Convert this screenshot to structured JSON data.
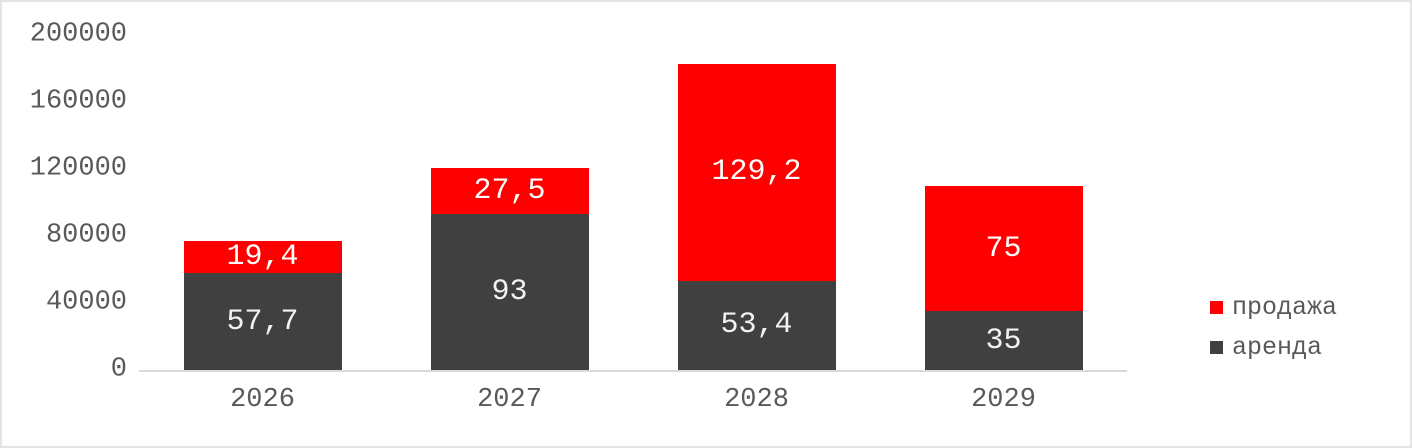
{
  "colors": {
    "series_red": "#ff0000",
    "series_dark": "#404040",
    "axis_text": "#595959",
    "axis_line": "#d9d9d9",
    "bar_label_on_red": "#ffffff",
    "bar_label_on_dark": "#f2f2f2",
    "canvas_border": "#e4e4e4",
    "background": "#ffffff"
  },
  "chart_data": {
    "type": "bar",
    "stacked": true,
    "grid": false,
    "background": "white",
    "categories": [
      "2026",
      "2027",
      "2028",
      "2029"
    ],
    "series": [
      {
        "name": "аренда",
        "color": "#404040",
        "values": [
          57700,
          93000,
          53400,
          35000
        ],
        "data_labels": [
          "57,7",
          "93",
          "53,4",
          "35"
        ]
      },
      {
        "name": "продажа",
        "color": "#ff0000",
        "values": [
          19400,
          27500,
          129200,
          75000
        ],
        "data_labels": [
          "19,4",
          "27,5",
          "129,2",
          "75"
        ]
      }
    ],
    "xlabel": "",
    "ylabel": "",
    "title": "",
    "ylim": [
      0,
      200000
    ],
    "y_ticks": [
      0,
      40000,
      80000,
      120000,
      160000,
      200000
    ],
    "y_tick_labels": [
      "0",
      "40000",
      "80000",
      "120000",
      "160000",
      "200000"
    ],
    "legend_position": "right",
    "legend": [
      {
        "label": "продажа",
        "color": "#ff0000"
      },
      {
        "label": "аренда",
        "color": "#404040"
      }
    ]
  }
}
